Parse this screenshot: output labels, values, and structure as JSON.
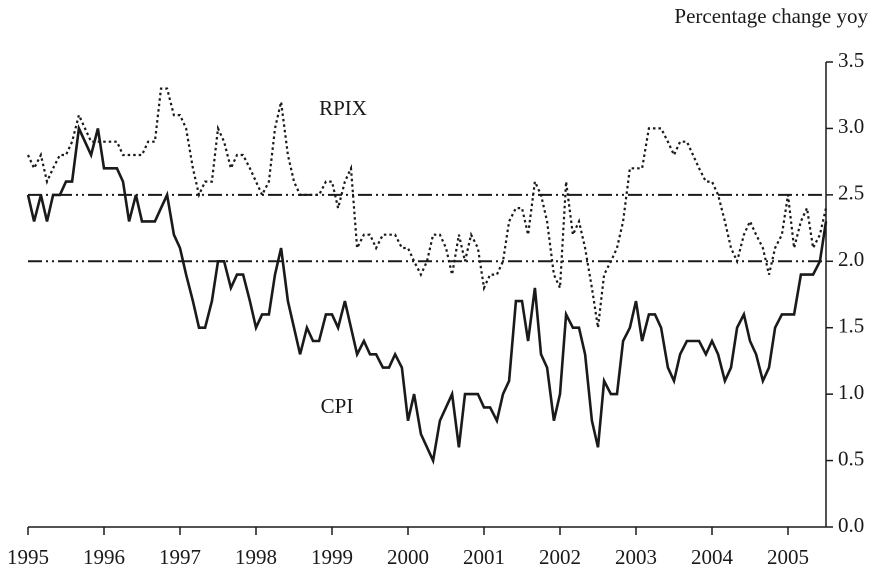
{
  "chart_data": {
    "type": "line",
    "y_label": "Percentage change yoy",
    "x": [
      1995,
      1995.08,
      1995.17,
      1995.25,
      1995.33,
      1995.42,
      1995.5,
      1995.58,
      1995.67,
      1995.75,
      1995.83,
      1995.92,
      1996,
      1996.08,
      1996.17,
      1996.25,
      1996.33,
      1996.42,
      1996.5,
      1996.58,
      1996.67,
      1996.75,
      1996.83,
      1996.92,
      1997,
      1997.08,
      1997.17,
      1997.25,
      1997.33,
      1997.42,
      1997.5,
      1997.58,
      1997.67,
      1997.75,
      1997.83,
      1997.92,
      1998,
      1998.08,
      1998.17,
      1998.25,
      1998.33,
      1998.42,
      1998.5,
      1998.58,
      1998.67,
      1998.75,
      1998.83,
      1998.92,
      1999,
      1999.08,
      1999.17,
      1999.25,
      1999.33,
      1999.42,
      1999.5,
      1999.58,
      1999.67,
      1999.75,
      1999.83,
      1999.92,
      2000,
      2000.08,
      2000.17,
      2000.25,
      2000.33,
      2000.42,
      2000.5,
      2000.58,
      2000.67,
      2000.75,
      2000.83,
      2000.92,
      2001,
      2001.08,
      2001.17,
      2001.25,
      2001.33,
      2001.42,
      2001.5,
      2001.58,
      2001.67,
      2001.75,
      2001.83,
      2001.92,
      2002,
      2002.08,
      2002.17,
      2002.25,
      2002.33,
      2002.42,
      2002.5,
      2002.58,
      2002.67,
      2002.75,
      2002.83,
      2002.92,
      2003,
      2003.08,
      2003.17,
      2003.25,
      2003.33,
      2003.42,
      2003.5,
      2003.58,
      2003.67,
      2003.75,
      2003.83,
      2003.92,
      2004,
      2004.08,
      2004.17,
      2004.25,
      2004.33,
      2004.42,
      2004.5,
      2004.58,
      2004.67,
      2004.75,
      2004.83,
      2004.92,
      2005,
      2005.08,
      2005.17,
      2005.25,
      2005.33,
      2005.42,
      2005.5
    ],
    "series": [
      {
        "name": "RPIX",
        "color": "#1a1a1a",
        "style": "dotted",
        "values": [
          2.8,
          2.7,
          2.8,
          2.6,
          2.7,
          2.8,
          2.8,
          2.9,
          3.1,
          3.0,
          2.9,
          2.9,
          2.9,
          2.9,
          2.9,
          2.8,
          2.8,
          2.8,
          2.8,
          2.9,
          2.9,
          3.3,
          3.3,
          3.1,
          3.1,
          3.0,
          2.7,
          2.5,
          2.6,
          2.6,
          3.0,
          2.9,
          2.7,
          2.8,
          2.8,
          2.7,
          2.6,
          2.5,
          2.6,
          3.0,
          3.2,
          2.8,
          2.6,
          2.5,
          2.5,
          2.5,
          2.5,
          2.6,
          2.6,
          2.4,
          2.6,
          2.7,
          2.1,
          2.2,
          2.2,
          2.1,
          2.2,
          2.2,
          2.2,
          2.1,
          2.1,
          2.0,
          1.9,
          2.0,
          2.2,
          2.2,
          2.1,
          1.9,
          2.2,
          2.0,
          2.2,
          2.1,
          1.8,
          1.9,
          1.9,
          2.0,
          2.3,
          2.4,
          2.4,
          2.2,
          2.6,
          2.5,
          2.3,
          1.9,
          1.8,
          2.6,
          2.2,
          2.3,
          2.1,
          1.8,
          1.5,
          1.9,
          2.0,
          2.1,
          2.3,
          2.7,
          2.7,
          2.7,
          3.0,
          3.0,
          3.0,
          2.9,
          2.8,
          2.9,
          2.9,
          2.8,
          2.7,
          2.6,
          2.6,
          2.5,
          2.3,
          2.1,
          2.0,
          2.2,
          2.3,
          2.2,
          2.1,
          1.9,
          2.1,
          2.2,
          2.5,
          2.1,
          2.3,
          2.4,
          2.1,
          2.2,
          2.4
        ]
      },
      {
        "name": "CPI",
        "color": "#1a1a1a",
        "style": "solid",
        "values": [
          2.5,
          2.3,
          2.5,
          2.3,
          2.5,
          2.5,
          2.6,
          2.6,
          3.0,
          2.9,
          2.8,
          3.0,
          2.7,
          2.7,
          2.7,
          2.6,
          2.3,
          2.5,
          2.3,
          2.3,
          2.3,
          2.4,
          2.5,
          2.2,
          2.1,
          1.9,
          1.7,
          1.5,
          1.5,
          1.7,
          2.0,
          2.0,
          1.8,
          1.9,
          1.9,
          1.7,
          1.5,
          1.6,
          1.6,
          1.9,
          2.1,
          1.7,
          1.5,
          1.3,
          1.5,
          1.4,
          1.4,
          1.6,
          1.6,
          1.5,
          1.7,
          1.5,
          1.3,
          1.4,
          1.3,
          1.3,
          1.2,
          1.2,
          1.3,
          1.2,
          0.8,
          1.0,
          0.7,
          0.6,
          0.5,
          0.8,
          0.9,
          1.0,
          0.6,
          1.0,
          1.0,
          1.0,
          0.9,
          0.9,
          0.8,
          1.0,
          1.1,
          1.7,
          1.7,
          1.4,
          1.8,
          1.3,
          1.2,
          0.8,
          1.0,
          1.6,
          1.5,
          1.5,
          1.3,
          0.8,
          0.6,
          1.1,
          1.0,
          1.0,
          1.4,
          1.5,
          1.7,
          1.4,
          1.6,
          1.6,
          1.5,
          1.2,
          1.1,
          1.3,
          1.4,
          1.4,
          1.4,
          1.3,
          1.4,
          1.3,
          1.1,
          1.2,
          1.5,
          1.6,
          1.4,
          1.3,
          1.1,
          1.2,
          1.5,
          1.6,
          1.6,
          1.6,
          1.9,
          1.9,
          1.9,
          2.0,
          2.3
        ]
      }
    ],
    "reference_lines": [
      2.5,
      2.0
    ],
    "xlim": [
      1995,
      2005.5
    ],
    "xticks": [
      1995,
      1996,
      1997,
      1998,
      1999,
      2000,
      2001,
      2002,
      2003,
      2004,
      2005
    ],
    "ylim": [
      0,
      3.5
    ],
    "yticks": [
      {
        "value": 0,
        "label": "0.0"
      },
      {
        "value": 0.5,
        "label": "0.5"
      },
      {
        "value": 1,
        "label": "1.0"
      },
      {
        "value": 1.5,
        "label": "1.5"
      },
      {
        "value": 2,
        "label": "2.0"
      },
      {
        "value": 2.5,
        "label": "2.5"
      },
      {
        "value": 3,
        "label": "3.0"
      },
      {
        "value": 3.5,
        "label": "3.5"
      }
    ],
    "grid": false
  }
}
